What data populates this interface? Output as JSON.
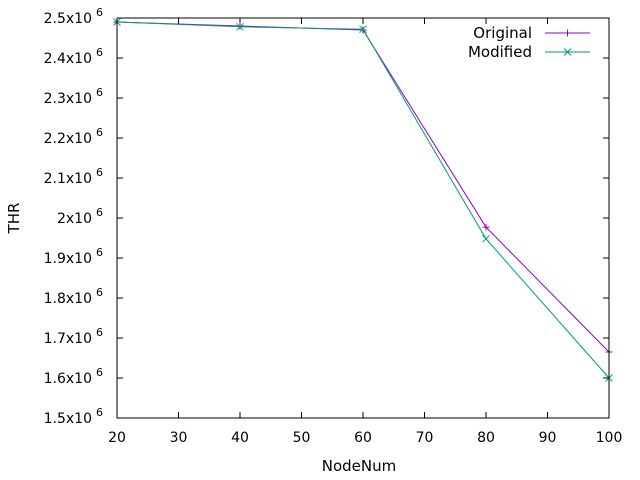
{
  "chart_data": {
    "type": "line",
    "title": "",
    "xlabel": "NodeNum",
    "ylabel": "THR",
    "x": [
      20,
      40,
      60,
      80,
      100
    ],
    "xlim": [
      20,
      100
    ],
    "ylim": [
      1500000,
      2500000
    ],
    "x_ticks": [
      "20",
      "30",
      "40",
      "50",
      "60",
      "70",
      "80",
      "90",
      "100"
    ],
    "y_ticks": [
      {
        "base": "1.5x10",
        "exp": "6"
      },
      {
        "base": "1.6x10",
        "exp": "6"
      },
      {
        "base": "1.7x10",
        "exp": "6"
      },
      {
        "base": "1.8x10",
        "exp": "6"
      },
      {
        "base": "1.9x10",
        "exp": "6"
      },
      {
        "base": "2x10",
        "exp": "6"
      },
      {
        "base": "2.1x10",
        "exp": "6"
      },
      {
        "base": "2.2x10",
        "exp": "6"
      },
      {
        "base": "2.3x10",
        "exp": "6"
      },
      {
        "base": "2.4x10",
        "exp": "6"
      },
      {
        "base": "2.5x10",
        "exp": "6"
      }
    ],
    "grid": false,
    "legend_position": "top-right",
    "series": [
      {
        "name": "Original",
        "color": "#9400d3",
        "marker": "plus",
        "values": [
          2490000,
          2480000,
          2470000,
          1977000,
          1665000
        ]
      },
      {
        "name": "Modified",
        "color": "#009e73",
        "marker": "cross",
        "values": [
          2490000,
          2478000,
          2472000,
          1948000,
          1600000
        ]
      }
    ]
  }
}
